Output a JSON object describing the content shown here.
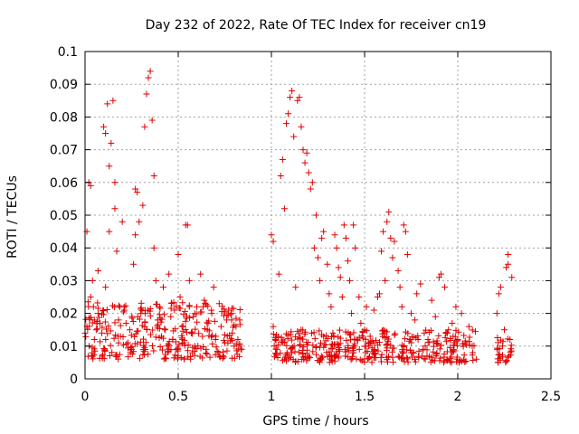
{
  "chart_data": {
    "type": "scatter",
    "title": "Day 232 of 2022, Rate Of TEC Index for receiver cn19",
    "xlabel": "GPS time / hours",
    "ylabel": "ROTI / TECUs",
    "xlim": [
      0,
      2.5
    ],
    "ylim": [
      0,
      0.1
    ],
    "x_ticks": [
      "0",
      "0.5",
      "1",
      "1.5",
      "2",
      "2.5"
    ],
    "y_ticks": [
      "0",
      "0.01",
      "0.02",
      "0.03",
      "0.04",
      "0.05",
      "0.06",
      "0.07",
      "0.08",
      "0.09",
      "0.1"
    ],
    "grid": true,
    "marker": "+",
    "color": "#e00000",
    "series": [
      {
        "name": "cn19",
        "points": [
          [
            0.0,
            0.014
          ],
          [
            0.01,
            0.016
          ],
          [
            0.01,
            0.045
          ],
          [
            0.02,
            0.06
          ],
          [
            0.03,
            0.059
          ],
          [
            0.03,
            0.025
          ],
          [
            0.04,
            0.03
          ],
          [
            0.05,
            0.018
          ],
          [
            0.05,
            0.012
          ],
          [
            0.06,
            0.015
          ],
          [
            0.07,
            0.02
          ],
          [
            0.07,
            0.033
          ],
          [
            0.08,
            0.017
          ],
          [
            0.09,
            0.014
          ],
          [
            0.1,
            0.077
          ],
          [
            0.11,
            0.075
          ],
          [
            0.11,
            0.028
          ],
          [
            0.12,
            0.084
          ],
          [
            0.13,
            0.065
          ],
          [
            0.13,
            0.045
          ],
          [
            0.14,
            0.072
          ],
          [
            0.15,
            0.085
          ],
          [
            0.16,
            0.06
          ],
          [
            0.16,
            0.052
          ],
          [
            0.17,
            0.039
          ],
          [
            0.18,
            0.018
          ],
          [
            0.19,
            0.013
          ],
          [
            0.2,
            0.048
          ],
          [
            0.21,
            0.022
          ],
          [
            0.22,
            0.017
          ],
          [
            0.23,
            0.011
          ],
          [
            0.24,
            0.015
          ],
          [
            0.25,
            0.009
          ],
          [
            0.26,
            0.035
          ],
          [
            0.27,
            0.044
          ],
          [
            0.27,
            0.058
          ],
          [
            0.28,
            0.057
          ],
          [
            0.29,
            0.048
          ],
          [
            0.3,
            0.02
          ],
          [
            0.31,
            0.053
          ],
          [
            0.32,
            0.077
          ],
          [
            0.33,
            0.087
          ],
          [
            0.34,
            0.092
          ],
          [
            0.35,
            0.094
          ],
          [
            0.36,
            0.079
          ],
          [
            0.37,
            0.062
          ],
          [
            0.37,
            0.04
          ],
          [
            0.38,
            0.03
          ],
          [
            0.39,
            0.018
          ],
          [
            0.4,
            0.022
          ],
          [
            0.41,
            0.013
          ],
          [
            0.42,
            0.028
          ],
          [
            0.43,
            0.015
          ],
          [
            0.44,
            0.01
          ],
          [
            0.45,
            0.032
          ],
          [
            0.46,
            0.019
          ],
          [
            0.47,
            0.012
          ],
          [
            0.48,
            0.021
          ],
          [
            0.49,
            0.009
          ],
          [
            0.5,
            0.038
          ],
          [
            0.51,
            0.025
          ],
          [
            0.52,
            0.016
          ],
          [
            0.53,
            0.011
          ],
          [
            0.54,
            0.047
          ],
          [
            0.55,
            0.047
          ],
          [
            0.56,
            0.03
          ],
          [
            0.57,
            0.014
          ],
          [
            0.58,
            0.019
          ],
          [
            0.59,
            0.01
          ],
          [
            0.6,
            0.022
          ],
          [
            0.62,
            0.032
          ],
          [
            0.63,
            0.013
          ],
          [
            0.64,
            0.024
          ],
          [
            0.65,
            0.009
          ],
          [
            0.66,
            0.017
          ],
          [
            0.68,
            0.02
          ],
          [
            0.69,
            0.028
          ],
          [
            0.7,
            0.012
          ],
          [
            0.72,
            0.023
          ],
          [
            0.73,
            0.016
          ],
          [
            0.75,
            0.011
          ],
          [
            0.76,
            0.018
          ],
          [
            0.77,
            0.021
          ],
          [
            0.79,
            0.014
          ],
          [
            0.8,
            0.01
          ],
          [
            0.81,
            0.016
          ],
          [
            0.82,
            0.012
          ],
          [
            0.83,
            0.018
          ],
          [
            0.84,
            0.009
          ],
          [
            1.0,
            0.044
          ],
          [
            1.01,
            0.042
          ],
          [
            1.01,
            0.016
          ],
          [
            1.02,
            0.012
          ],
          [
            1.03,
            0.009
          ],
          [
            1.04,
            0.032
          ],
          [
            1.05,
            0.062
          ],
          [
            1.06,
            0.067
          ],
          [
            1.07,
            0.052
          ],
          [
            1.08,
            0.078
          ],
          [
            1.09,
            0.081
          ],
          [
            1.1,
            0.086
          ],
          [
            1.11,
            0.088
          ],
          [
            1.12,
            0.074
          ],
          [
            1.13,
            0.028
          ],
          [
            1.14,
            0.085
          ],
          [
            1.15,
            0.086
          ],
          [
            1.16,
            0.077
          ],
          [
            1.17,
            0.07
          ],
          [
            1.18,
            0.066
          ],
          [
            1.19,
            0.069
          ],
          [
            1.2,
            0.063
          ],
          [
            1.21,
            0.058
          ],
          [
            1.22,
            0.06
          ],
          [
            1.23,
            0.04
          ],
          [
            1.24,
            0.05
          ],
          [
            1.25,
            0.037
          ],
          [
            1.26,
            0.03
          ],
          [
            1.27,
            0.043
          ],
          [
            1.28,
            0.045
          ],
          [
            1.3,
            0.035
          ],
          [
            1.31,
            0.026
          ],
          [
            1.32,
            0.022
          ],
          [
            1.33,
            0.014
          ],
          [
            1.34,
            0.044
          ],
          [
            1.35,
            0.04
          ],
          [
            1.36,
            0.034
          ],
          [
            1.37,
            0.031
          ],
          [
            1.38,
            0.025
          ],
          [
            1.39,
            0.047
          ],
          [
            1.4,
            0.043
          ],
          [
            1.41,
            0.036
          ],
          [
            1.42,
            0.03
          ],
          [
            1.43,
            0.02
          ],
          [
            1.44,
            0.047
          ],
          [
            1.45,
            0.04
          ],
          [
            1.46,
            0.012
          ],
          [
            1.47,
            0.025
          ],
          [
            1.48,
            0.017
          ],
          [
            1.5,
            0.015
          ],
          [
            1.51,
            0.022
          ],
          [
            1.52,
            0.011
          ],
          [
            1.53,
            0.013
          ],
          [
            1.55,
            0.021
          ],
          [
            1.57,
            0.025
          ],
          [
            1.58,
            0.026
          ],
          [
            1.59,
            0.039
          ],
          [
            1.6,
            0.045
          ],
          [
            1.61,
            0.03
          ],
          [
            1.62,
            0.048
          ],
          [
            1.63,
            0.051
          ],
          [
            1.64,
            0.043
          ],
          [
            1.65,
            0.037
          ],
          [
            1.66,
            0.042
          ],
          [
            1.68,
            0.033
          ],
          [
            1.69,
            0.028
          ],
          [
            1.7,
            0.022
          ],
          [
            1.71,
            0.047
          ],
          [
            1.72,
            0.045
          ],
          [
            1.73,
            0.038
          ],
          [
            1.75,
            0.02
          ],
          [
            1.77,
            0.018
          ],
          [
            1.78,
            0.026
          ],
          [
            1.8,
            0.029
          ],
          [
            1.82,
            0.014
          ],
          [
            1.84,
            0.012
          ],
          [
            1.86,
            0.024
          ],
          [
            1.88,
            0.019
          ],
          [
            1.9,
            0.031
          ],
          [
            1.91,
            0.032
          ],
          [
            1.93,
            0.028
          ],
          [
            1.95,
            0.015
          ],
          [
            1.97,
            0.017
          ],
          [
            1.99,
            0.022
          ],
          [
            2.0,
            0.012
          ],
          [
            2.02,
            0.02
          ],
          [
            2.04,
            0.011
          ],
          [
            2.06,
            0.016
          ],
          [
            2.08,
            0.008
          ],
          [
            2.1,
            0.006
          ],
          [
            2.21,
            0.02
          ],
          [
            2.22,
            0.026
          ],
          [
            2.23,
            0.028
          ],
          [
            2.24,
            0.01
          ],
          [
            2.25,
            0.015
          ],
          [
            2.26,
            0.034
          ],
          [
            2.27,
            0.035
          ],
          [
            2.27,
            0.038
          ],
          [
            2.28,
            0.012
          ],
          [
            2.29,
            0.031
          ]
        ]
      }
    ],
    "bulk_band": [
      {
        "x_range": [
          0.0,
          0.84
        ],
        "y_range": [
          0.006,
          0.024
        ],
        "samples_per_hour": 340
      },
      {
        "x_range": [
          1.0,
          2.1
        ],
        "y_range": [
          0.005,
          0.015
        ],
        "samples_per_hour": 340
      },
      {
        "x_range": [
          2.21,
          2.29
        ],
        "y_range": [
          0.005,
          0.013
        ],
        "samples_per_hour": 340
      }
    ]
  }
}
